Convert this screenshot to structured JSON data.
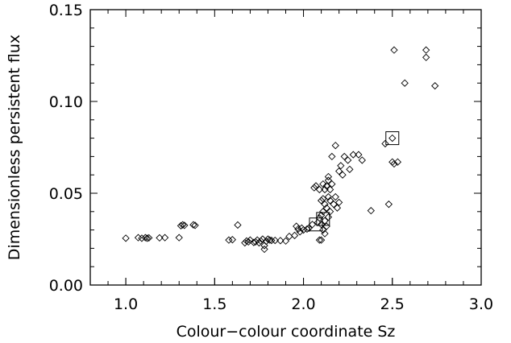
{
  "chart_data": {
    "type": "scatter",
    "title": "",
    "xlabel": "Colour−colour coordinate Sz",
    "ylabel": "Dimensionless persistent flux",
    "xlim": [
      0.8,
      3.0
    ],
    "ylim": [
      0.0,
      0.15
    ],
    "x_ticks": [
      1.0,
      1.5,
      2.0,
      2.5,
      3.0
    ],
    "x_tick_labels": [
      "1.0",
      "1.5",
      "2.0",
      "2.5",
      "3.0"
    ],
    "y_ticks": [
      0.0,
      0.05,
      0.1,
      0.15
    ],
    "y_tick_labels": [
      "0.00",
      "0.05",
      "0.10",
      "0.15"
    ],
    "grid": false,
    "series": [
      {
        "marker": "diamond",
        "points": [
          [
            1.0,
            0.0255
          ],
          [
            1.07,
            0.0258
          ],
          [
            1.09,
            0.0255
          ],
          [
            1.11,
            0.0258
          ],
          [
            1.12,
            0.0255
          ],
          [
            1.13,
            0.0257
          ],
          [
            1.19,
            0.0257
          ],
          [
            1.22,
            0.0258
          ],
          [
            1.3,
            0.0258
          ],
          [
            1.31,
            0.0323
          ],
          [
            1.32,
            0.0328
          ],
          [
            1.33,
            0.0325
          ],
          [
            1.38,
            0.0328
          ],
          [
            1.39,
            0.0325
          ],
          [
            1.58,
            0.0245
          ],
          [
            1.6,
            0.0247
          ],
          [
            1.63,
            0.0327
          ],
          [
            1.67,
            0.023
          ],
          [
            1.68,
            0.024
          ],
          [
            1.69,
            0.0235
          ],
          [
            1.7,
            0.0245
          ],
          [
            1.72,
            0.0232
          ],
          [
            1.73,
            0.0235
          ],
          [
            1.74,
            0.0245
          ],
          [
            1.75,
            0.023
          ],
          [
            1.76,
            0.024
          ],
          [
            1.77,
            0.025
          ],
          [
            1.78,
            0.0195
          ],
          [
            1.78,
            0.0215
          ],
          [
            1.79,
            0.0238
          ],
          [
            1.8,
            0.025
          ],
          [
            1.81,
            0.0245
          ],
          [
            1.82,
            0.0243
          ],
          [
            1.84,
            0.0243
          ],
          [
            1.87,
            0.0242
          ],
          [
            1.9,
            0.024
          ],
          [
            1.92,
            0.0265
          ],
          [
            1.95,
            0.027
          ],
          [
            1.96,
            0.032
          ],
          [
            1.97,
            0.0305
          ],
          [
            1.98,
            0.029
          ],
          [
            1.99,
            0.031
          ],
          [
            2.0,
            0.03
          ],
          [
            2.02,
            0.0305
          ],
          [
            2.03,
            0.031
          ],
          [
            2.05,
            0.033
          ],
          [
            2.06,
            0.053
          ],
          [
            2.07,
            0.054
          ],
          [
            2.08,
            0.034
          ],
          [
            2.09,
            0.0245
          ],
          [
            2.09,
            0.0365
          ],
          [
            2.09,
            0.052
          ],
          [
            2.1,
            0.0245
          ],
          [
            2.1,
            0.033
          ],
          [
            2.1,
            0.038
          ],
          [
            2.1,
            0.046
          ],
          [
            2.11,
            0.03
          ],
          [
            2.11,
            0.04
          ],
          [
            2.11,
            0.047
          ],
          [
            2.11,
            0.055
          ],
          [
            2.12,
            0.028
          ],
          [
            2.12,
            0.035
          ],
          [
            2.12,
            0.044
          ],
          [
            2.12,
            0.052
          ],
          [
            2.13,
            0.032
          ],
          [
            2.13,
            0.042
          ],
          [
            2.13,
            0.054
          ],
          [
            2.14,
            0.037
          ],
          [
            2.14,
            0.048
          ],
          [
            2.14,
            0.057
          ],
          [
            2.14,
            0.059
          ],
          [
            2.15,
            0.04
          ],
          [
            2.15,
            0.046
          ],
          [
            2.15,
            0.052
          ],
          [
            2.16,
            0.055
          ],
          [
            2.16,
            0.07
          ],
          [
            2.17,
            0.044
          ],
          [
            2.18,
            0.048
          ],
          [
            2.18,
            0.076
          ],
          [
            2.19,
            0.042
          ],
          [
            2.2,
            0.045
          ],
          [
            2.2,
            0.062
          ],
          [
            2.21,
            0.065
          ],
          [
            2.22,
            0.06
          ],
          [
            2.23,
            0.07
          ],
          [
            2.25,
            0.068
          ],
          [
            2.26,
            0.063
          ],
          [
            2.28,
            0.071
          ],
          [
            2.31,
            0.071
          ],
          [
            2.33,
            0.068
          ],
          [
            2.38,
            0.0405
          ],
          [
            2.46,
            0.077
          ],
          [
            2.48,
            0.044
          ],
          [
            2.5,
            0.067
          ],
          [
            2.5,
            0.08
          ],
          [
            2.51,
            0.128
          ],
          [
            2.51,
            0.066
          ],
          [
            2.53,
            0.067
          ],
          [
            2.57,
            0.11
          ],
          [
            2.69,
            0.124
          ],
          [
            2.69,
            0.128
          ],
          [
            2.74,
            0.1085
          ]
        ]
      },
      {
        "marker": "square",
        "points": [
          [
            2.07,
            0.033
          ],
          [
            2.11,
            0.036
          ],
          [
            2.5,
            0.08
          ]
        ]
      }
    ]
  }
}
